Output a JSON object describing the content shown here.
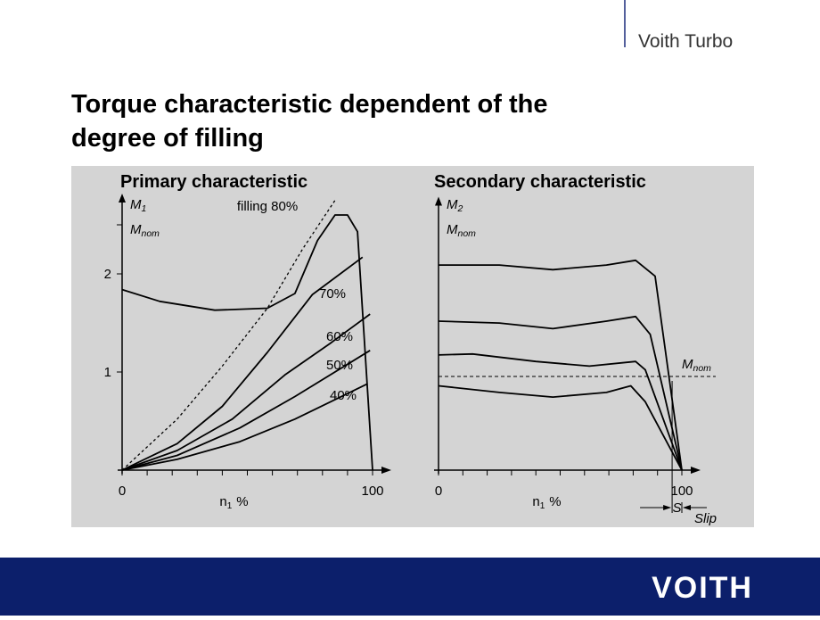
{
  "header": {
    "brand": "Voith Turbo",
    "title_lines": [
      "Torque characteristic dependent of the",
      "degree of filling"
    ],
    "footer_logo": "VOITH"
  },
  "chart_data": [
    {
      "type": "line",
      "title": "Primary characteristic",
      "xlabel": {
        "symbol": "n",
        "index": "1",
        "unit": "%"
      },
      "ylabel": {
        "symbol": "M",
        "index": "1"
      },
      "ylabel_denominator": {
        "symbol": "M",
        "index": "nom"
      },
      "xlim": [
        0,
        100
      ],
      "ylim": [
        0,
        2.8
      ],
      "xticks": [
        0,
        100
      ],
      "xminorticks": [
        10,
        20,
        30,
        40,
        50,
        60,
        70,
        80,
        90
      ],
      "yticks": [
        1,
        2
      ],
      "yminorticks": [
        2.5
      ],
      "series": [
        {
          "color": "#000000",
          "dashed": false,
          "x": [
            0,
            15,
            37,
            58,
            69,
            78,
            85,
            90,
            94,
            100
          ],
          "values": [
            1.84,
            1.72,
            1.63,
            1.65,
            1.8,
            2.34,
            2.6,
            2.6,
            2.43,
            0
          ]
        },
        {
          "name": "filling  80%",
          "color": "#000000",
          "dashed": true,
          "x": [
            0,
            22,
            40,
            58,
            72,
            85
          ],
          "values": [
            0,
            0.52,
            1.06,
            1.65,
            2.25,
            2.75
          ]
        },
        {
          "name": "70%",
          "color": "#000000",
          "dashed": false,
          "x": [
            0,
            22,
            40,
            58,
            76,
            96
          ],
          "values": [
            0,
            0.27,
            0.65,
            1.2,
            1.79,
            2.17
          ]
        },
        {
          "name": "60%",
          "color": "#000000",
          "dashed": false,
          "x": [
            0,
            22,
            44,
            65,
            83,
            99
          ],
          "values": [
            0,
            0.2,
            0.52,
            0.97,
            1.29,
            1.59
          ]
        },
        {
          "name": "50%",
          "color": "#000000",
          "dashed": false,
          "x": [
            0,
            22,
            47,
            69,
            99
          ],
          "values": [
            0,
            0.15,
            0.43,
            0.75,
            1.22
          ]
        },
        {
          "name": "40%",
          "color": "#000000",
          "dashed": false,
          "x": [
            0,
            22,
            47,
            69,
            98
          ],
          "values": [
            0,
            0.11,
            0.29,
            0.52,
            0.88
          ]
        }
      ]
    },
    {
      "type": "line",
      "title": "Secondary characteristic",
      "xlabel": {
        "symbol": "n",
        "index": "1",
        "unit": "%"
      },
      "ylabel": {
        "symbol": "M",
        "index": "2"
      },
      "ylabel_denominator": {
        "symbol": "M",
        "index": "nom"
      },
      "xlim": [
        0,
        100
      ],
      "ylim": [
        0,
        2.9
      ],
      "xticks": [
        0,
        100
      ],
      "xminorticks": [
        10,
        20,
        30,
        40,
        50,
        60,
        70,
        80,
        90
      ],
      "yticks": [],
      "yminorticks": [],
      "reference": {
        "value": 1,
        "label": {
          "symbol": "M",
          "index": "nom"
        }
      },
      "slip": {
        "value": 96,
        "label": "S",
        "text": "Slip"
      },
      "series": [
        {
          "color": "#000000",
          "dashed": false,
          "x": [
            0,
            25,
            47,
            69,
            81,
            89,
            100
          ],
          "values": [
            2.19,
            2.19,
            2.14,
            2.19,
            2.24,
            2.07,
            0
          ]
        },
        {
          "color": "#000000",
          "dashed": false,
          "x": [
            0,
            25,
            47,
            69,
            81,
            87,
            100
          ],
          "values": [
            1.59,
            1.57,
            1.51,
            1.59,
            1.64,
            1.45,
            0
          ]
        },
        {
          "color": "#000000",
          "dashed": false,
          "x": [
            0,
            14,
            40,
            62,
            81,
            85,
            100
          ],
          "values": [
            1.23,
            1.24,
            1.16,
            1.11,
            1.16,
            1.07,
            0
          ]
        },
        {
          "color": "#000000",
          "dashed": false,
          "x": [
            0,
            25,
            47,
            69,
            79,
            85,
            100
          ],
          "values": [
            0.9,
            0.83,
            0.78,
            0.83,
            0.9,
            0.73,
            0
          ]
        }
      ]
    }
  ]
}
